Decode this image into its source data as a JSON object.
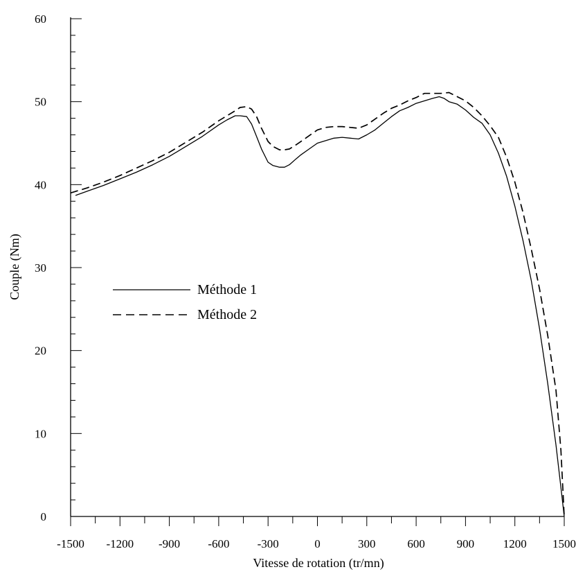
{
  "chart_data": {
    "type": "line",
    "title": "",
    "xlabel": "Vitesse de rotation (tr/mn)",
    "ylabel": "Couple (Nm)",
    "xlim": [
      -1500,
      1500
    ],
    "ylim": [
      0,
      60
    ],
    "xticks": [
      -1500,
      -1200,
      -900,
      -600,
      -300,
      0,
      300,
      600,
      900,
      1200,
      1500
    ],
    "yticks": [
      0,
      10,
      20,
      30,
      40,
      50,
      60
    ],
    "grid": false,
    "legend_position": "middle-left",
    "series": [
      {
        "name": "Méthode 1",
        "style": "solid",
        "color": "#000000",
        "x": [
          -1470,
          -1400,
          -1300,
          -1200,
          -1100,
          -1000,
          -900,
          -800,
          -700,
          -600,
          -550,
          -500,
          -470,
          -430,
          -400,
          -370,
          -340,
          -300,
          -270,
          -230,
          -200,
          -170,
          -130,
          -100,
          -50,
          0,
          50,
          100,
          150,
          200,
          250,
          300,
          350,
          400,
          450,
          500,
          550,
          600,
          650,
          700,
          740,
          770,
          800,
          850,
          900,
          950,
          1000,
          1050,
          1100,
          1150,
          1200,
          1250,
          1300,
          1350,
          1400,
          1450,
          1480,
          1500
        ],
        "y": [
          38.7,
          39.2,
          39.9,
          40.7,
          41.5,
          42.4,
          43.4,
          44.6,
          45.8,
          47.2,
          47.8,
          48.3,
          48.3,
          48.2,
          47.3,
          45.8,
          44.3,
          42.7,
          42.3,
          42.1,
          42.1,
          42.4,
          43.1,
          43.6,
          44.3,
          45.0,
          45.3,
          45.6,
          45.7,
          45.6,
          45.5,
          46.0,
          46.6,
          47.4,
          48.2,
          48.9,
          49.3,
          49.8,
          50.1,
          50.4,
          50.6,
          50.4,
          50.0,
          49.7,
          49.0,
          48.1,
          47.4,
          46.0,
          43.8,
          41.0,
          37.4,
          33.2,
          28.4,
          22.6,
          16.0,
          8.6,
          3.5,
          0.0
        ]
      },
      {
        "name": "Méthode 2",
        "style": "dashed",
        "color": "#000000",
        "x": [
          -1500,
          -1400,
          -1300,
          -1200,
          -1100,
          -1000,
          -900,
          -800,
          -700,
          -600,
          -550,
          -500,
          -470,
          -430,
          -400,
          -370,
          -340,
          -300,
          -270,
          -230,
          -200,
          -170,
          -130,
          -100,
          -50,
          0,
          50,
          100,
          150,
          200,
          250,
          300,
          350,
          400,
          450,
          500,
          550,
          600,
          650,
          700,
          750,
          800,
          850,
          900,
          950,
          1000,
          1050,
          1100,
          1150,
          1200,
          1250,
          1300,
          1350,
          1400,
          1450,
          1480,
          1500
        ],
        "y": [
          39.0,
          39.6,
          40.3,
          41.1,
          42.0,
          42.9,
          43.9,
          45.1,
          46.3,
          47.7,
          48.3,
          48.9,
          49.3,
          49.4,
          49.1,
          48.2,
          46.8,
          45.2,
          44.6,
          44.2,
          44.2,
          44.3,
          44.8,
          45.2,
          45.9,
          46.6,
          46.9,
          47.0,
          47.0,
          46.9,
          46.8,
          47.2,
          47.9,
          48.6,
          49.2,
          49.6,
          50.1,
          50.5,
          51.0,
          51.0,
          51.0,
          51.1,
          50.6,
          50.1,
          49.3,
          48.3,
          47.1,
          45.7,
          43.3,
          40.3,
          36.6,
          32.2,
          27.4,
          21.8,
          15.2,
          8.0,
          0.0
        ]
      }
    ]
  }
}
